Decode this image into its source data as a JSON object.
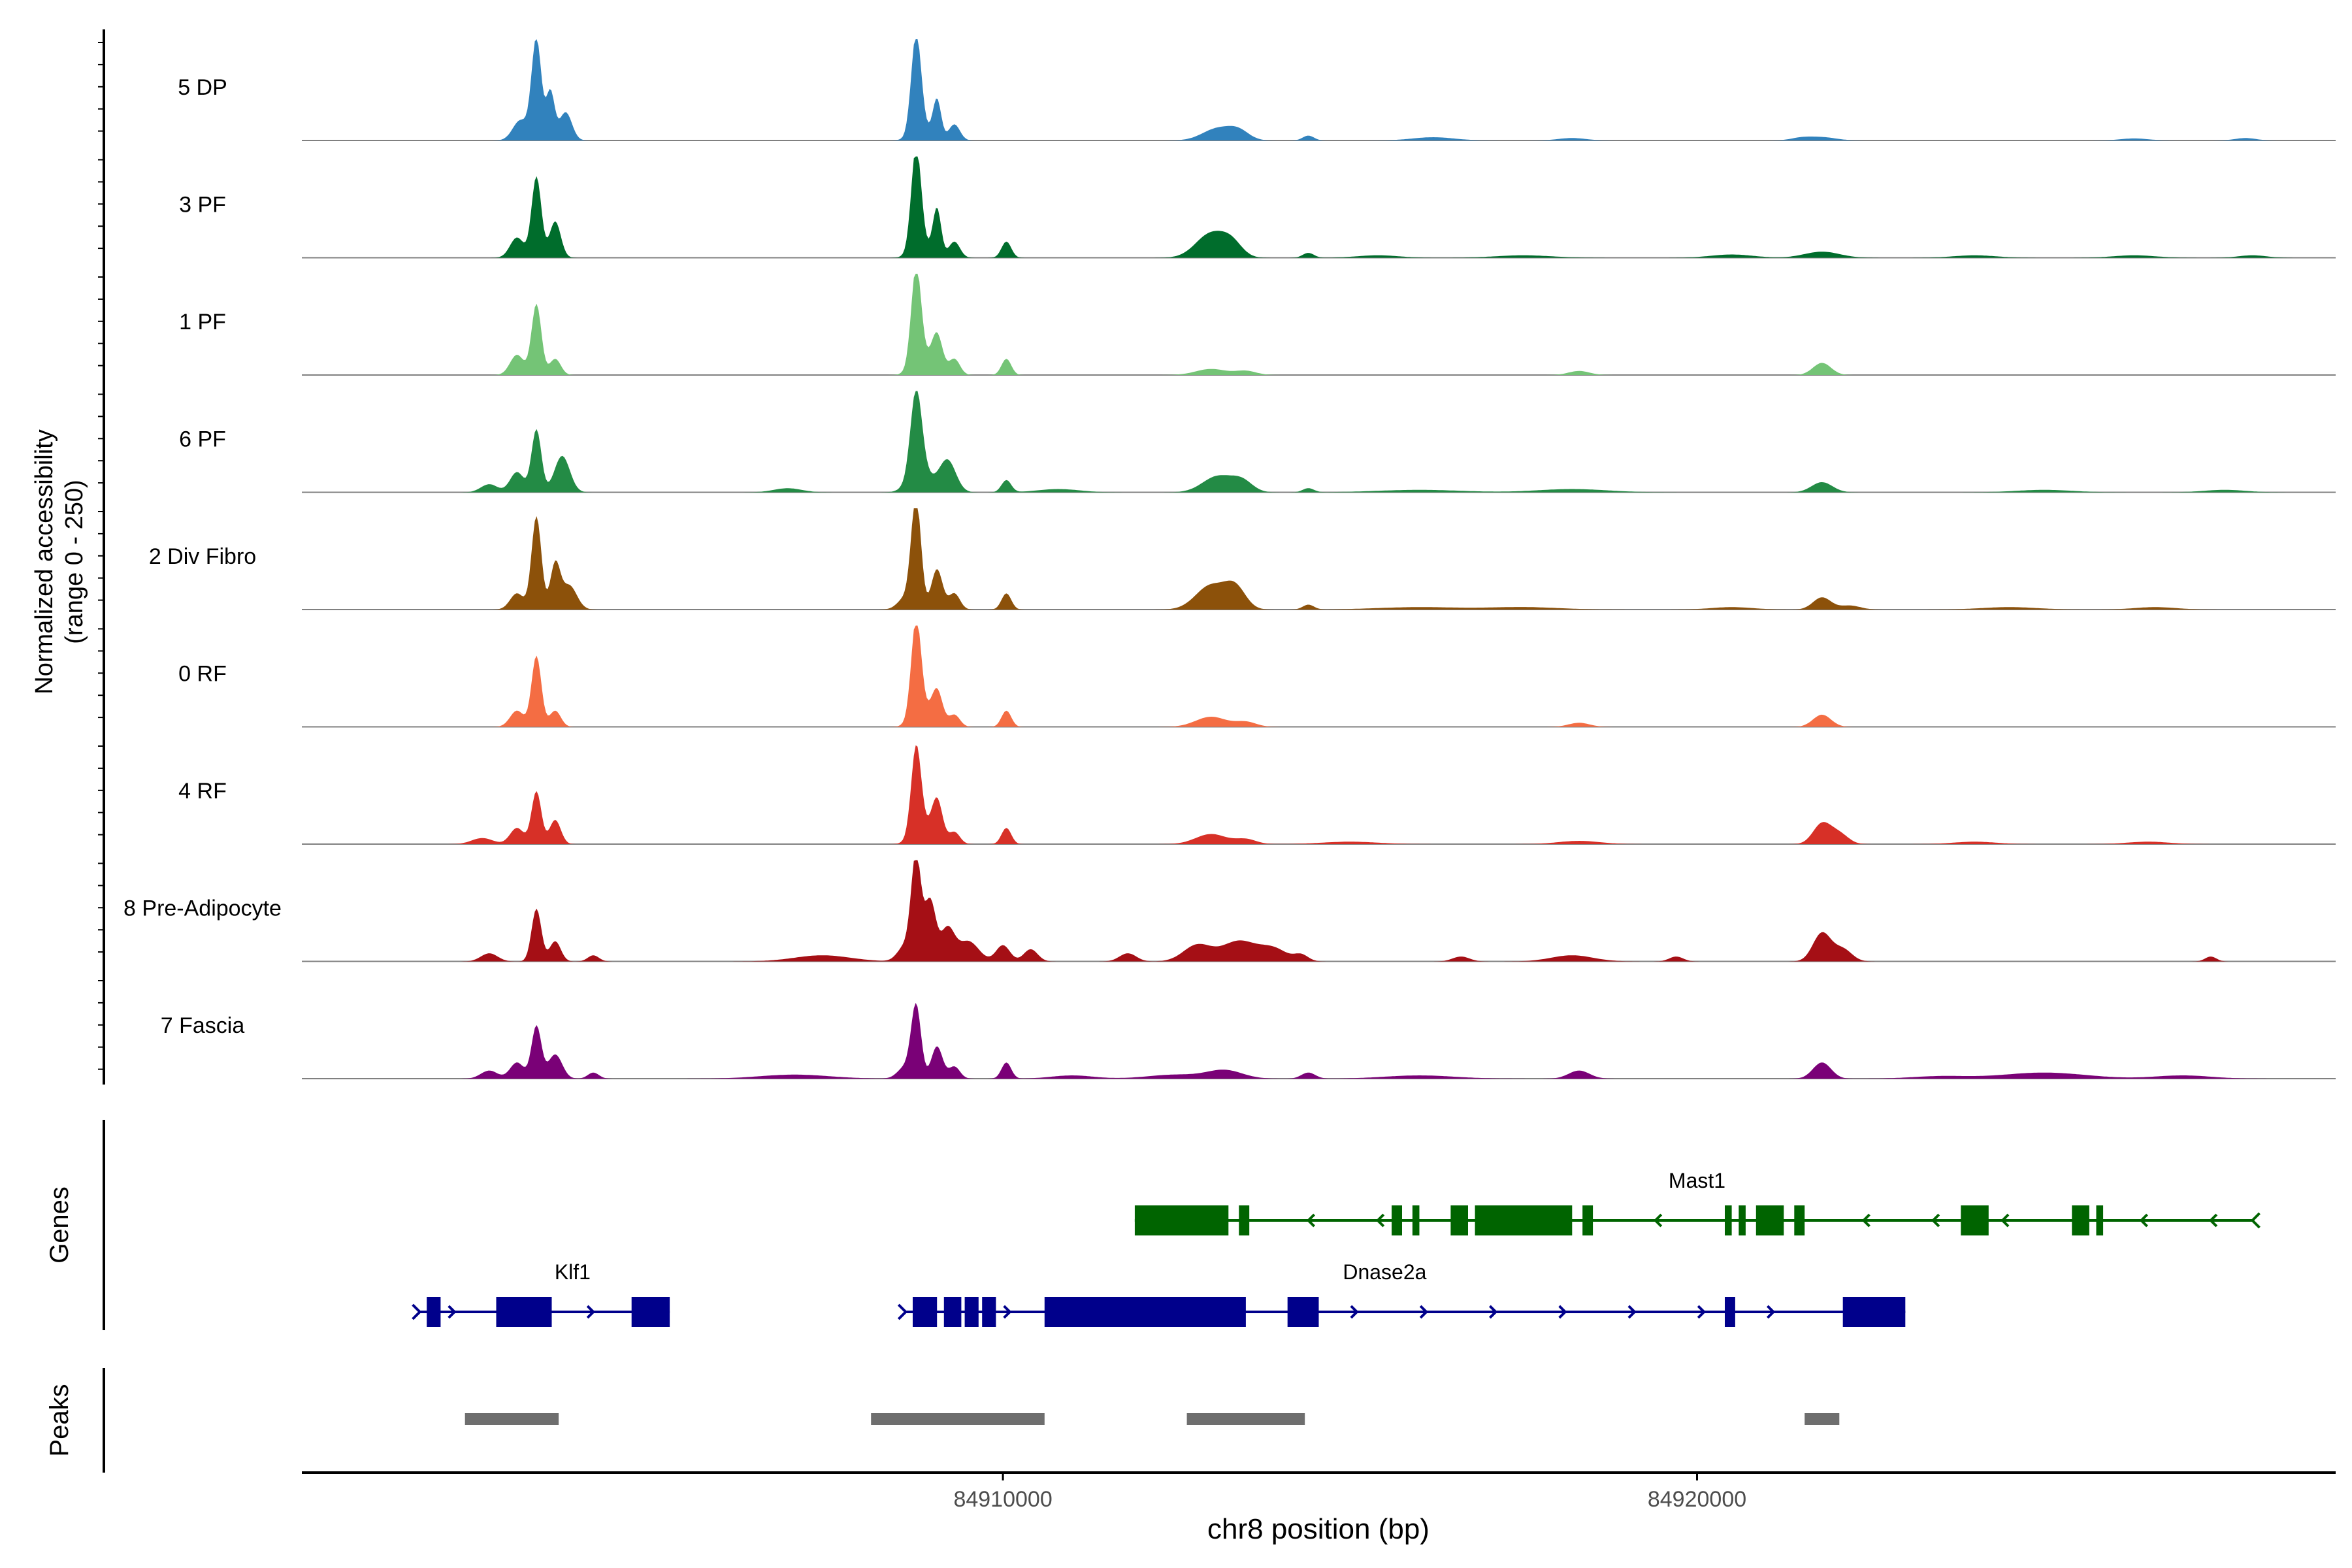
{
  "chart_data": {
    "type": "coverage",
    "xlabel": "chr8 position (bp)",
    "xlim": [
      84899900,
      84929200
    ],
    "x_ticks": [
      84910000,
      84920000
    ],
    "x_tick_labels": [
      "84910000",
      "84920000"
    ],
    "ylabel_line1": "Normalized accessibility",
    "ylabel_line2": "(range 0 - 250)",
    "ylim": [
      0,
      250
    ],
    "tracks": [
      {
        "name": "5 DP",
        "color": "#3182bd",
        "peaks": [
          [
            84903050,
            50,
            110
          ],
          [
            84903280,
            250,
            70
          ],
          [
            84903480,
            120,
            60
          ],
          [
            84903700,
            70,
            90
          ],
          [
            84908800,
            40,
            120
          ],
          [
            84908750,
            230,
            70
          ],
          [
            84909050,
            100,
            60
          ],
          [
            84909300,
            40,
            80
          ],
          [
            84913100,
            30,
            220
          ],
          [
            84913400,
            20,
            150
          ],
          [
            84914400,
            12,
            80
          ],
          [
            84916200,
            8,
            300
          ],
          [
            84918200,
            6,
            200
          ],
          [
            84921500,
            6,
            150
          ],
          [
            84921800,
            8,
            200
          ],
          [
            84926300,
            5,
            200
          ],
          [
            84927900,
            6,
            150
          ]
        ]
      },
      {
        "name": "3 PF",
        "color": "#006d2c",
        "peaks": [
          [
            84903000,
            50,
            100
          ],
          [
            84903280,
            200,
            70
          ],
          [
            84903550,
            90,
            80
          ],
          [
            84908800,
            40,
            120
          ],
          [
            84908750,
            240,
            70
          ],
          [
            84909050,
            120,
            60
          ],
          [
            84909300,
            40,
            80
          ],
          [
            84910050,
            40,
            70
          ],
          [
            84913000,
            60,
            220
          ],
          [
            84913300,
            30,
            150
          ],
          [
            84914400,
            12,
            80
          ],
          [
            84915400,
            6,
            300
          ],
          [
            84917500,
            6,
            400
          ],
          [
            84920500,
            8,
            300
          ],
          [
            84921800,
            15,
            250
          ],
          [
            84924000,
            6,
            300
          ],
          [
            84926300,
            6,
            300
          ],
          [
            84928000,
            6,
            200
          ]
        ]
      },
      {
        "name": "1 PF",
        "color": "#74c476",
        "peaks": [
          [
            84903000,
            50,
            100
          ],
          [
            84903280,
            175,
            70
          ],
          [
            84903550,
            40,
            80
          ],
          [
            84908800,
            50,
            120
          ],
          [
            84908750,
            225,
            70
          ],
          [
            84909050,
            100,
            80
          ],
          [
            84909300,
            40,
            80
          ],
          [
            84910050,
            40,
            70
          ],
          [
            84913000,
            15,
            220
          ],
          [
            84913500,
            10,
            150
          ],
          [
            84918300,
            10,
            150
          ],
          [
            84921800,
            30,
            130
          ]
        ]
      },
      {
        "name": "6 PF",
        "color": "#238b45",
        "peaks": [
          [
            84902600,
            20,
            120
          ],
          [
            84903000,
            50,
            100
          ],
          [
            84903280,
            155,
            70
          ],
          [
            84903650,
            90,
            110
          ],
          [
            84906900,
            10,
            200
          ],
          [
            84908800,
            60,
            150
          ],
          [
            84908750,
            200,
            80
          ],
          [
            84909200,
            80,
            120
          ],
          [
            84910050,
            30,
            70
          ],
          [
            84910800,
            8,
            300
          ],
          [
            84913100,
            40,
            220
          ],
          [
            84913450,
            25,
            150
          ],
          [
            84914400,
            10,
            80
          ],
          [
            84916000,
            6,
            600
          ],
          [
            84918200,
            8,
            500
          ],
          [
            84921800,
            25,
            150
          ],
          [
            84925000,
            6,
            400
          ],
          [
            84927600,
            6,
            300
          ]
        ]
      },
      {
        "name": "2 Div Fibro",
        "color": "#8c510a",
        "peaks": [
          [
            84903000,
            40,
            100
          ],
          [
            84903280,
            230,
            70
          ],
          [
            84903550,
            110,
            70
          ],
          [
            84903750,
            60,
            110
          ],
          [
            84908600,
            30,
            110
          ],
          [
            84908750,
            270,
            70
          ],
          [
            84909050,
            100,
            80
          ],
          [
            84909300,
            40,
            80
          ],
          [
            84910050,
            40,
            70
          ],
          [
            84913000,
            60,
            220
          ],
          [
            84913350,
            50,
            150
          ],
          [
            84914400,
            12,
            80
          ],
          [
            84916000,
            6,
            600
          ],
          [
            84917500,
            6,
            500
          ],
          [
            84920500,
            6,
            300
          ],
          [
            84921800,
            30,
            130
          ],
          [
            84922200,
            10,
            150
          ],
          [
            84924500,
            6,
            400
          ],
          [
            84926600,
            6,
            300
          ]
        ]
      },
      {
        "name": "0 RF",
        "color": "#f46d43",
        "peaks": [
          [
            84903000,
            40,
            100
          ],
          [
            84903280,
            175,
            70
          ],
          [
            84903550,
            40,
            80
          ],
          [
            84908800,
            50,
            120
          ],
          [
            84908750,
            225,
            70
          ],
          [
            84909050,
            90,
            80
          ],
          [
            84909300,
            30,
            80
          ],
          [
            84910050,
            40,
            70
          ],
          [
            84913000,
            25,
            220
          ],
          [
            84913500,
            12,
            150
          ],
          [
            84918300,
            10,
            150
          ],
          [
            84921800,
            30,
            130
          ]
        ]
      },
      {
        "name": "4 RF",
        "color": "#d73027",
        "peaks": [
          [
            84903000,
            40,
            100
          ],
          [
            84903280,
            130,
            70
          ],
          [
            84903550,
            60,
            80
          ],
          [
            84902500,
            15,
            150
          ],
          [
            84908800,
            50,
            120
          ],
          [
            84908750,
            200,
            70
          ],
          [
            84909050,
            110,
            80
          ],
          [
            84909300,
            30,
            80
          ],
          [
            84910050,
            40,
            70
          ],
          [
            84913000,
            25,
            220
          ],
          [
            84913500,
            12,
            150
          ],
          [
            84915000,
            6,
            400
          ],
          [
            84918300,
            8,
            300
          ],
          [
            84921800,
            50,
            130
          ],
          [
            84922050,
            25,
            130
          ],
          [
            84924000,
            6,
            300
          ],
          [
            84926500,
            6,
            300
          ]
        ]
      },
      {
        "name": "8 Pre-Adipocyte",
        "color": "#a50f15",
        "peaks": [
          [
            84902600,
            20,
            120
          ],
          [
            84903280,
            130,
            70
          ],
          [
            84903550,
            50,
            80
          ],
          [
            84904100,
            15,
            80
          ],
          [
            84907400,
            15,
            400
          ],
          [
            84908600,
            40,
            110
          ],
          [
            84908750,
            250,
            70
          ],
          [
            84908950,
            150,
            80
          ],
          [
            84909200,
            80,
            100
          ],
          [
            84909500,
            50,
            150
          ],
          [
            84910000,
            40,
            100
          ],
          [
            84910400,
            30,
            100
          ],
          [
            84911800,
            20,
            120
          ],
          [
            84912800,
            40,
            200
          ],
          [
            84913400,
            50,
            250
          ],
          [
            84913900,
            30,
            200
          ],
          [
            84914300,
            15,
            100
          ],
          [
            84916600,
            12,
            120
          ],
          [
            84918200,
            15,
            300
          ],
          [
            84919700,
            12,
            100
          ],
          [
            84921800,
            70,
            130
          ],
          [
            84922100,
            30,
            130
          ],
          [
            84927400,
            12,
            80
          ]
        ]
      },
      {
        "name": "7 Fascia",
        "color": "#7a0177",
        "peaks": [
          [
            84902600,
            20,
            120
          ],
          [
            84903000,
            40,
            100
          ],
          [
            84903280,
            130,
            70
          ],
          [
            84903550,
            60,
            100
          ],
          [
            84904100,
            15,
            80
          ],
          [
            84907000,
            10,
            500
          ],
          [
            84908600,
            30,
            110
          ],
          [
            84908750,
            175,
            70
          ],
          [
            84909050,
            80,
            80
          ],
          [
            84909300,
            30,
            80
          ],
          [
            84910050,
            40,
            70
          ],
          [
            84911000,
            8,
            300
          ],
          [
            84912500,
            10,
            400
          ],
          [
            84913200,
            20,
            250
          ],
          [
            84914400,
            15,
            100
          ],
          [
            84916000,
            8,
            500
          ],
          [
            84918300,
            20,
            150
          ],
          [
            84921800,
            40,
            130
          ],
          [
            84923500,
            6,
            400
          ],
          [
            84925000,
            15,
            600
          ],
          [
            84927000,
            8,
            400
          ]
        ]
      }
    ],
    "genes": [
      {
        "name": "Mast1",
        "strand": "-",
        "color": "#006400",
        "start": 84911900,
        "end": 84928000,
        "exons": [
          [
            84911900,
            84913250
          ],
          [
            84913400,
            84913550
          ],
          [
            84915600,
            84915750
          ],
          [
            84915900,
            84916000
          ],
          [
            84916450,
            84916700
          ],
          [
            84916800,
            84918200
          ],
          [
            84918350,
            84918500
          ],
          [
            84920400,
            84920500
          ],
          [
            84920600,
            84920700
          ],
          [
            84920850,
            84921250
          ],
          [
            84921400,
            84921550
          ],
          [
            84923800,
            84924200
          ],
          [
            84925400,
            84925650
          ],
          [
            84925750,
            84925850
          ]
        ]
      },
      {
        "name": "Klf1",
        "strand": "+",
        "color": "#00008b",
        "start": 84901600,
        "end": 84905200,
        "exons": [
          [
            84901700,
            84901900
          ],
          [
            84902700,
            84903500
          ],
          [
            84904650,
            84905200
          ]
        ]
      },
      {
        "name": "Dnase2a",
        "strand": "+",
        "color": "#00008b",
        "start": 84908600,
        "end": 84923000,
        "exons": [
          [
            84908700,
            84909050
          ],
          [
            84909150,
            84909400
          ],
          [
            84909450,
            84909650
          ],
          [
            84909700,
            84909900
          ],
          [
            84910600,
            84913500
          ],
          [
            84914100,
            84914550
          ],
          [
            84920400,
            84920550
          ],
          [
            84922100,
            84923000
          ]
        ]
      }
    ],
    "peak_regions": [
      [
        84902250,
        84903600
      ],
      [
        84908100,
        84910600
      ],
      [
        84912650,
        84914350
      ],
      [
        84921550,
        84922050
      ]
    ],
    "panel_labels": [
      "Genes",
      "Peaks"
    ]
  }
}
